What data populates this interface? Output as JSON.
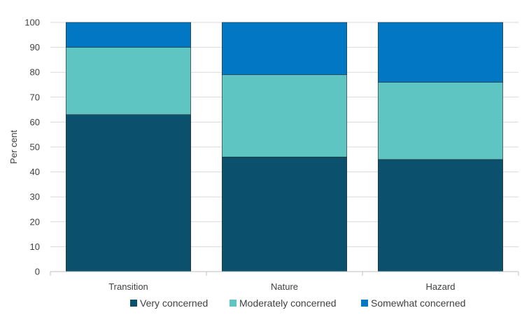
{
  "chart_data": {
    "type": "bar",
    "stacked": true,
    "title": "",
    "xlabel": "",
    "ylabel": "Per cent",
    "ylim": [
      0,
      100
    ],
    "yticks": [
      0,
      10,
      20,
      30,
      40,
      50,
      60,
      70,
      80,
      90,
      100
    ],
    "grid": true,
    "legend_position": "bottom",
    "categories": [
      "Transition",
      "Nature",
      "Hazard"
    ],
    "series": [
      {
        "name": "Very concerned",
        "color": "#0b516d",
        "values": [
          63,
          46,
          45
        ]
      },
      {
        "name": "Moderately concerned",
        "color": "#5ec5c2",
        "values": [
          27,
          33,
          31
        ]
      },
      {
        "name": "Somewhat concerned",
        "color": "#0278c4",
        "values": [
          10,
          21,
          24
        ]
      }
    ]
  }
}
